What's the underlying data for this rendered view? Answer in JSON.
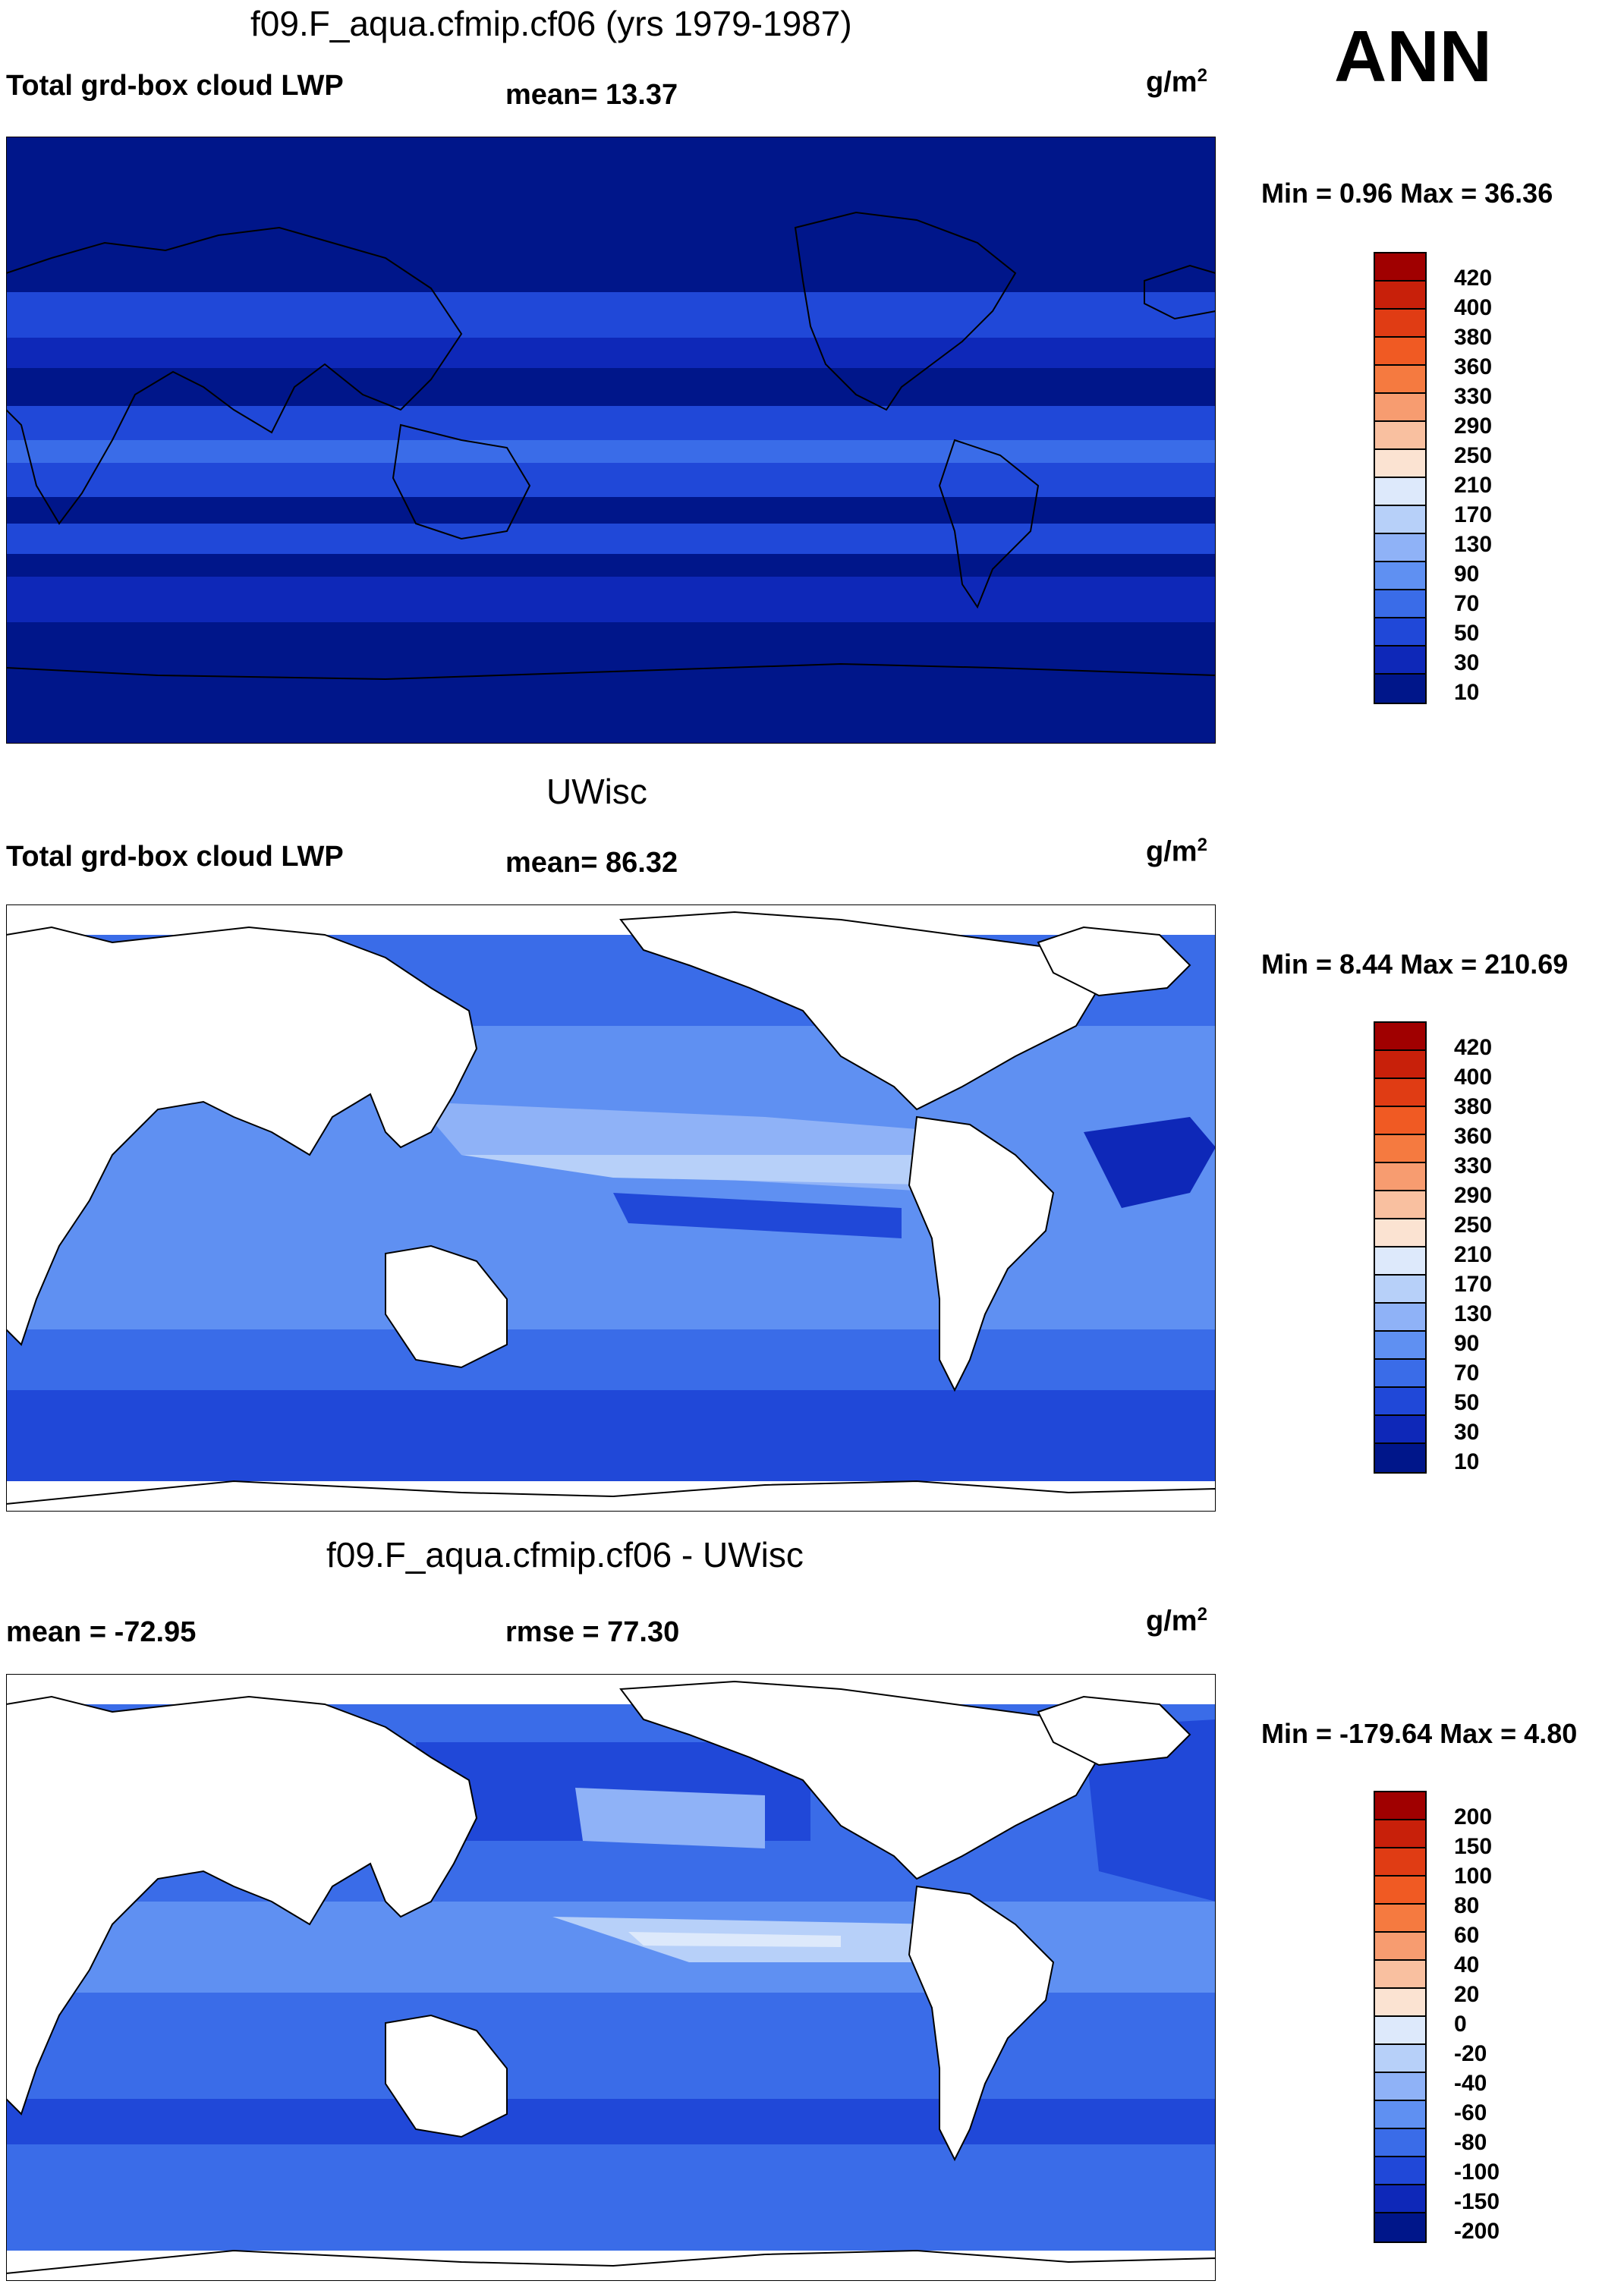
{
  "season": "ANN",
  "units": {
    "base": "g/m",
    "exp": "2"
  },
  "colors": {
    "scale": [
      "#a00000",
      "#c8200a",
      "#e03c14",
      "#f05a23",
      "#f57a40",
      "#f79c70",
      "#f9c0a0",
      "#fbe3d2",
      "#dde9fb",
      "#b7d0f9",
      "#8fb2f7",
      "#5f90f2",
      "#3a6ce8",
      "#2048d8",
      "#0e28b8",
      "#00168a"
    ]
  },
  "panels": [
    {
      "title": "f09.F_aqua.cfmip.cf06 (yrs 1979-1987)",
      "left_label": "Total grd-box cloud LWP",
      "mid_label": "mean=  13.37",
      "min_max": "Min =   0.96 Max =  36.36",
      "legend_labels": [
        "420",
        "400",
        "380",
        "360",
        "330",
        "290",
        "250",
        "210",
        "170",
        "130",
        "90",
        "70",
        "50",
        "30",
        "10"
      ]
    },
    {
      "title": "UWisc",
      "left_label": "Total grd-box cloud LWP",
      "mid_label": "mean=  86.32",
      "min_max": "Min =   8.44 Max = 210.69",
      "legend_labels": [
        "420",
        "400",
        "380",
        "360",
        "330",
        "290",
        "250",
        "210",
        "170",
        "130",
        "90",
        "70",
        "50",
        "30",
        "10"
      ]
    },
    {
      "title": "f09.F_aqua.cfmip.cf06 - UWisc",
      "left_label": "mean = -72.95",
      "mid_label": "rmse =  77.30",
      "min_max": "Min = -179.64 Max =   4.80",
      "legend_labels": [
        "200",
        "150",
        "100",
        "80",
        "60",
        "40",
        "20",
        "0",
        "-20",
        "-40",
        "-60",
        "-80",
        "-100",
        "-150",
        "-200"
      ]
    }
  ]
}
